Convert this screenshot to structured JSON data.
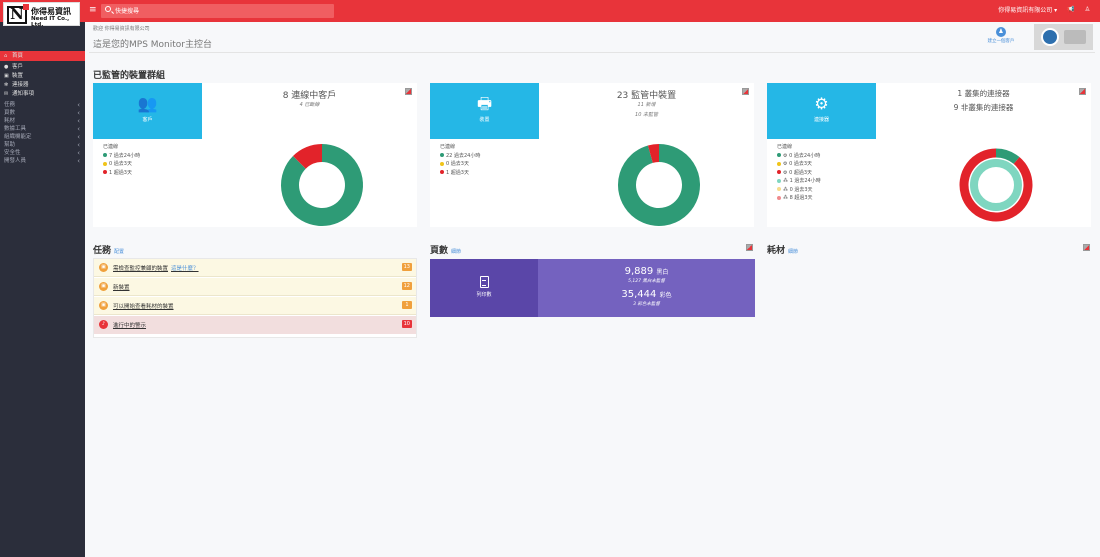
{
  "topbar": {
    "logo_zh": "你得易資訊",
    "logo_en": "Need IT Co., Ltd.",
    "search_placeholder": "快捷搜尋",
    "company_link": "你得易資訊有限公司 ▾"
  },
  "sidebar": {
    "items": [
      {
        "label": "首頁",
        "icon": "home-icon",
        "glyph": "⌂"
      },
      {
        "label": "客戶",
        "icon": "user-icon",
        "glyph": "●"
      },
      {
        "label": "裝置",
        "icon": "printer-icon",
        "glyph": "▣"
      },
      {
        "label": "連接器",
        "icon": "gears-icon",
        "glyph": "✻"
      },
      {
        "label": "通知事項",
        "icon": "envelope-icon",
        "glyph": "✉"
      }
    ],
    "sections": [
      "任務",
      "頁數",
      "耗材",
      "數據工具",
      "組織機能定",
      "幫助",
      "安全性",
      "開發人員"
    ]
  },
  "header": {
    "breadcrumb": "歡迎 你得易資訊有限公司",
    "title": "這是您的MPS Monitor主控台",
    "button_label": "建立一個客戶"
  },
  "devices_title": "已監管的裝置群組",
  "cards": {
    "customers": {
      "tile": "客戶",
      "headline": "8 連線中客戶",
      "sub1": "4 已斷線",
      "legend_title": "已連線",
      "legend": [
        "7 過去24小時",
        "0 過去3天",
        "1 超過3天"
      ]
    },
    "devices": {
      "tile": "裝置",
      "headline": "23 監管中裝置",
      "sub1": "11 新增",
      "sub2": "10 未監管",
      "legend_title": "已連線",
      "legend": [
        "22 過去24小時",
        "0 過去3天",
        "1 超過3天"
      ]
    },
    "connectors": {
      "tile": "連接器",
      "headline": "1 叢集的連接器",
      "headline2": "9 非叢集的連接器",
      "legend_title": "已連線",
      "legend": [
        "0 過去24小時",
        "0 過去3天",
        "0 超過3天",
        "1 過去24小時",
        "0 過去3天",
        "8 超過3天"
      ]
    }
  },
  "chart_data": [
    {
      "type": "pie",
      "name": "customers",
      "labels": [
        "過去24小時",
        "過去3天",
        "超過3天"
      ],
      "values": [
        7,
        0,
        1
      ],
      "colors": [
        "#2e9b76",
        "#f0c419",
        "#e2232a"
      ]
    },
    {
      "type": "pie",
      "name": "devices",
      "labels": [
        "過去24小時",
        "過去3天",
        "超過3天"
      ],
      "values": [
        22,
        0,
        1
      ],
      "colors": [
        "#2e9b76",
        "#f0c419",
        "#e2232a"
      ]
    },
    {
      "type": "pie",
      "name": "connectors",
      "labels": [
        "過去24小時",
        "過去3天",
        "超過3天"
      ],
      "values": [
        1,
        0,
        8
      ],
      "colors": [
        "#2e9b76",
        "#f0c419",
        "#e2232a"
      ]
    }
  ],
  "tasks": {
    "title": "任務",
    "link": "配置",
    "items": [
      {
        "label": "需檢查監控兼顧的裝置",
        "extra": "這是什麼？",
        "count": "13",
        "icon": "printer-icon",
        "color": "#f0a03c",
        "badge": "#f0a03c",
        "bg": "#fcf8e3"
      },
      {
        "label": "新裝置",
        "extra": "",
        "count": "12",
        "icon": "printer-icon",
        "color": "#f0a03c",
        "badge": "#f0a03c",
        "bg": "#fcf8e3"
      },
      {
        "label": "可以開始查看耗材的裝置",
        "extra": "",
        "count": "1",
        "icon": "printer-icon",
        "color": "#f0a03c",
        "badge": "#f0a03c",
        "bg": "#fcf8e3"
      },
      {
        "label": "進行中的警示",
        "extra": "",
        "count": "10",
        "icon": "bell-icon",
        "color": "#e8343a",
        "badge": "#e8343a",
        "bg": "#f2dede"
      }
    ]
  },
  "counts": {
    "title": "頁數",
    "link": "細節",
    "tile": "列印數",
    "mono": "9,889",
    "mono_label": "黑白",
    "mono_sub": "5,127 黑白未監督",
    "color": "35,444",
    "color_label": "彩色",
    "color_sub": "3 彩色未監督"
  },
  "supplies": {
    "title": "耗材",
    "link": "細節"
  }
}
